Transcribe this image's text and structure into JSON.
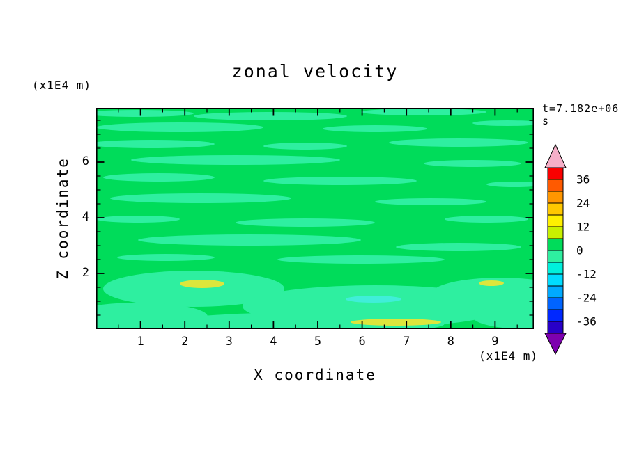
{
  "page": {
    "background": "#ffffff"
  },
  "chart_data": {
    "type": "heatmap",
    "title": "zonal velocity",
    "time_annotation": "t=7.182e+06 s",
    "xlabel": "X coordinate",
    "x_unit": "(x1E4 m)",
    "ylabel": "Z coordinate",
    "y_unit": "(x1E4 m)",
    "x_ticks": [
      1,
      2,
      3,
      4,
      5,
      6,
      7,
      8,
      9
    ],
    "y_ticks": [
      2,
      4,
      6
    ],
    "xlim": [
      0,
      9.9
    ],
    "ylim": [
      0,
      7.95
    ],
    "grid": false,
    "legend_position": "right-colorbar",
    "field_description": "contour field mostly near zero: base green with light spring-green horizontal streaks, yellow-green spots and one cyan spot near the bottom",
    "contour_step": 6,
    "value_range": [
      -42,
      42
    ],
    "colorbar": {
      "labels": [
        36,
        24,
        12,
        0,
        -12,
        -24,
        -36
      ],
      "segments_top_to_bottom": [
        {
          "hi": 42,
          "lo": 36,
          "color": "#FA0000"
        },
        {
          "hi": 36,
          "lo": 30,
          "color": "#FF5A00"
        },
        {
          "hi": 30,
          "lo": 24,
          "color": "#FF9600"
        },
        {
          "hi": 24,
          "lo": 18,
          "color": "#FFC800"
        },
        {
          "hi": 18,
          "lo": 12,
          "color": "#FFF000"
        },
        {
          "hi": 12,
          "lo": 6,
          "color": "#C8F000"
        },
        {
          "hi": 6,
          "lo": 0,
          "color": "#00DC5A"
        },
        {
          "hi": 0,
          "lo": -6,
          "color": "#2EEFA0"
        },
        {
          "hi": -6,
          "lo": -12,
          "color": "#00F0DC"
        },
        {
          "hi": -12,
          "lo": -18,
          "color": "#00DCFF"
        },
        {
          "hi": -18,
          "lo": -24,
          "color": "#00AAFF"
        },
        {
          "hi": -24,
          "lo": -30,
          "color": "#0064FF"
        },
        {
          "hi": -30,
          "lo": -36,
          "color": "#0028FF"
        },
        {
          "hi": -36,
          "lo": -42,
          "color": "#2800C8"
        }
      ],
      "arrow_top_color": "#F5AFC8",
      "arrow_bottom_color": "#7D00AF"
    },
    "field_palette": {
      "base_green": "#00DC5A",
      "streak_green": "#2EEFA0",
      "spot_yellow": "#DCE63C",
      "spot_cyan": "#40EED8"
    }
  }
}
